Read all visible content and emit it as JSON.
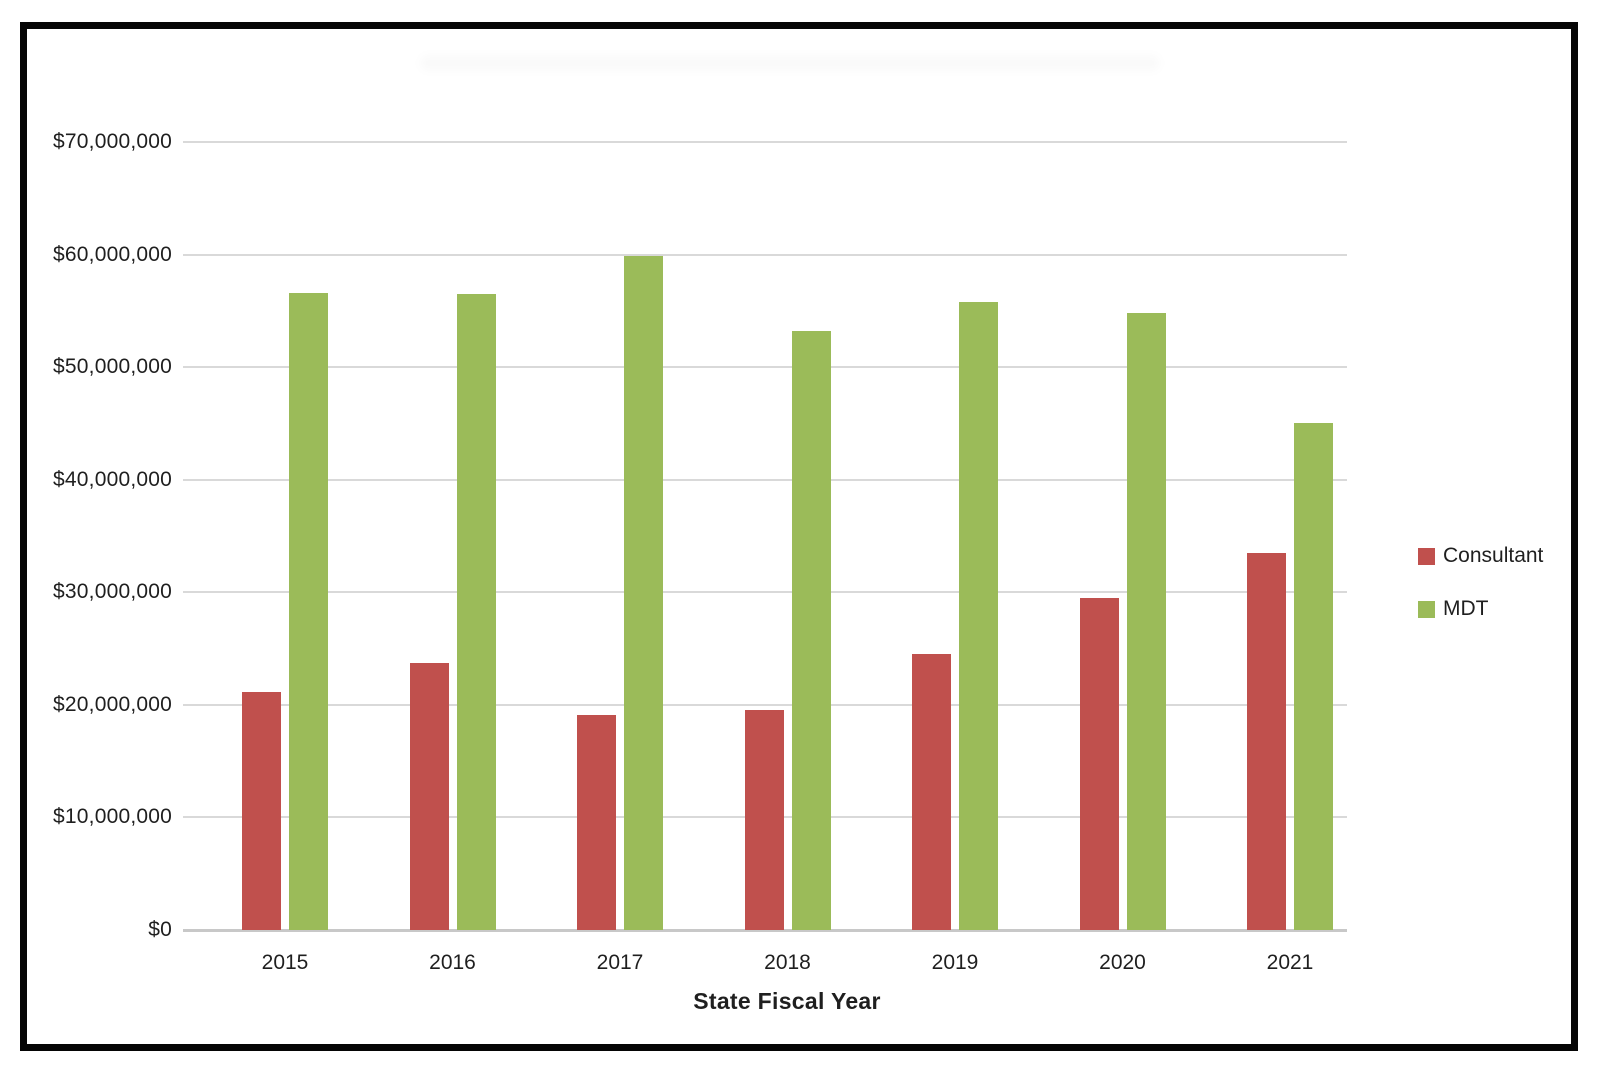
{
  "chart_data": {
    "type": "bar",
    "title": "",
    "xlabel": "State Fiscal Year",
    "ylabel": "",
    "categories": [
      "2015",
      "2016",
      "2017",
      "2018",
      "2019",
      "2020",
      "2021"
    ],
    "series": [
      {
        "name": "Consultant",
        "color": "#C0504D",
        "values": [
          21100000,
          23700000,
          19100000,
          19500000,
          24500000,
          29500000,
          33500000
        ]
      },
      {
        "name": "MDT",
        "color": "#9BBB59",
        "values": [
          56600000,
          56500000,
          59900000,
          53200000,
          55800000,
          54800000,
          45000000
        ]
      }
    ],
    "y_tick_values": [
      0,
      10000000,
      20000000,
      30000000,
      40000000,
      50000000,
      60000000,
      70000000
    ],
    "y_tick_labels": [
      "$0",
      "$10,000,000",
      "$20,000,000",
      "$30,000,000",
      "$40,000,000",
      "$50,000,000",
      "$60,000,000",
      "$70,000,000"
    ],
    "ylim": [
      0,
      70000000
    ],
    "grid": true,
    "legend_position": "right",
    "gridline_color": "#D9D9D9",
    "axis_line_color": "#C8C8C8"
  }
}
